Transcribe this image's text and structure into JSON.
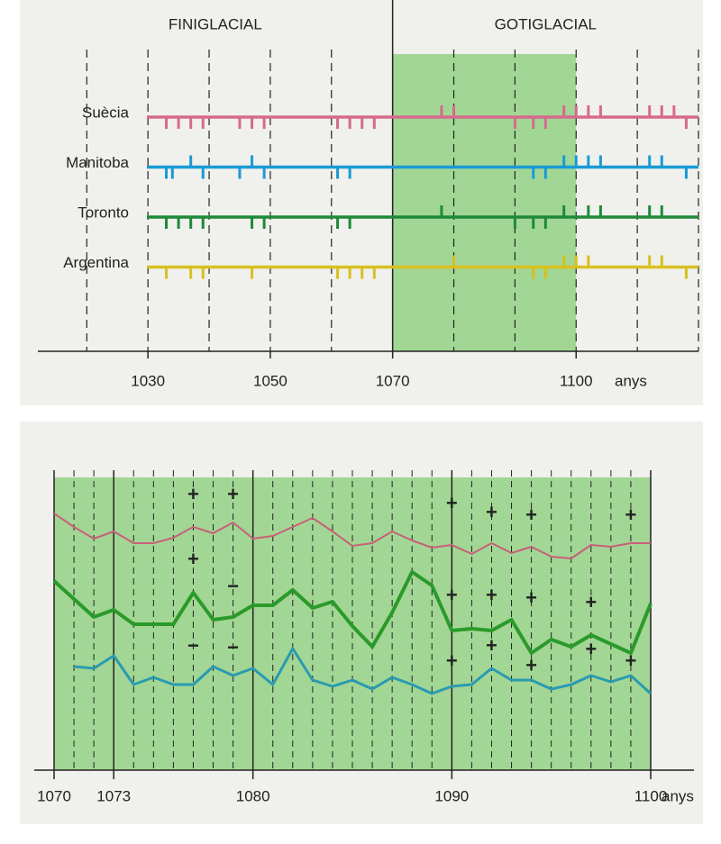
{
  "chart_data": [
    {
      "type": "event",
      "periods": [
        "FINIGLACIAL",
        "GOTIGLACIAL"
      ],
      "divider": 1070,
      "shade": [
        1070,
        1100
      ],
      "x_label": "anys",
      "xlim": [
        1012,
        1120
      ],
      "xticks": [
        1030,
        1050,
        1070,
        1100
      ],
      "grid_step": 10,
      "series": [
        {
          "name": "Suècia",
          "color": "#d66a8e",
          "x": [
            1033,
            1035,
            1037,
            1039,
            1045,
            1047,
            1049,
            1061,
            1063,
            1065,
            1067,
            1078,
            1080,
            1090,
            1093,
            1095,
            1098,
            1100,
            1102,
            1104,
            1112,
            1114,
            1116,
            1118
          ],
          "values": [
            -1,
            -1,
            -1,
            -1,
            -1,
            -1,
            -1,
            -1,
            -1,
            -1,
            -1,
            1,
            1,
            -1,
            -1,
            -1,
            1,
            1,
            1,
            1,
            1,
            1,
            1,
            -1
          ]
        },
        {
          "name": "Manitoba",
          "color": "#1a9ad6",
          "x": [
            1033,
            1034,
            1037,
            1039,
            1045,
            1047,
            1049,
            1061,
            1063,
            1093,
            1095,
            1098,
            1100,
            1102,
            1104,
            1112,
            1114,
            1118
          ],
          "values": [
            -1,
            -1,
            1,
            -1,
            -1,
            1,
            -1,
            -1,
            -1,
            -1,
            -1,
            1,
            1,
            1,
            1,
            1,
            1,
            -1
          ]
        },
        {
          "name": "Toronto",
          "color": "#1e8a3a",
          "x": [
            1033,
            1035,
            1037,
            1039,
            1047,
            1049,
            1061,
            1063,
            1078,
            1090,
            1093,
            1095,
            1098,
            1102,
            1104,
            1112,
            1114
          ],
          "values": [
            -1,
            -1,
            -1,
            -1,
            -1,
            -1,
            -1,
            -1,
            1,
            -1,
            -1,
            -1,
            1,
            1,
            1,
            1,
            1
          ]
        },
        {
          "name": "Argentina",
          "color": "#d8c020",
          "x": [
            1033,
            1037,
            1039,
            1047,
            1061,
            1063,
            1065,
            1067,
            1080,
            1093,
            1095,
            1098,
            1100,
            1102,
            1112,
            1114,
            1118
          ],
          "values": [
            -1,
            -1,
            -1,
            -1,
            -1,
            -1,
            -1,
            -1,
            1,
            -1,
            -1,
            1,
            1,
            1,
            1,
            1,
            -1
          ]
        }
      ]
    },
    {
      "type": "line",
      "x_label": "anys",
      "xlim": [
        1070,
        1100
      ],
      "xticks": [
        1070,
        1073,
        1080,
        1090,
        1100
      ],
      "minor_grid_step": 1,
      "ylim": [
        0,
        325
      ],
      "x": [
        1070,
        1071,
        1072,
        1073,
        1074,
        1075,
        1076,
        1077,
        1078,
        1079,
        1080,
        1081,
        1082,
        1083,
        1084,
        1085,
        1086,
        1087,
        1088,
        1089,
        1090,
        1091,
        1092,
        1093,
        1094,
        1095,
        1096,
        1097,
        1098,
        1099,
        1100
      ],
      "series": [
        {
          "color": "#c8607a",
          "width": 2,
          "values": [
            285,
            270,
            257,
            265,
            252,
            252,
            258,
            270,
            263,
            275,
            257,
            260,
            270,
            280,
            265,
            249,
            252,
            265,
            255,
            247,
            250,
            240,
            252,
            241,
            248,
            237,
            235,
            250,
            248,
            252,
            252
          ]
        },
        {
          "color": "#2a9a2a",
          "width": 4,
          "values": [
            210,
            190,
            170,
            178,
            162,
            162,
            162,
            197,
            167,
            170,
            183,
            183,
            200,
            180,
            187,
            160,
            137,
            175,
            220,
            205,
            155,
            157,
            155,
            167,
            130,
            145,
            137,
            150,
            140,
            130,
            185
          ]
        },
        {
          "color": "#2a9ab0",
          "width": 3,
          "values": [
            null,
            115,
            113,
            127,
            95,
            103,
            95,
            95,
            115,
            105,
            113,
            95,
            135,
            100,
            93,
            100,
            90,
            103,
            95,
            85,
            93,
            95,
            113,
            100,
            100,
            90,
            95,
            105,
            98,
            105,
            85
          ]
        }
      ],
      "annotations": [
        {
          "text": "+",
          "x": 1077,
          "y": 305
        },
        {
          "text": "+",
          "x": 1079,
          "y": 305
        },
        {
          "text": "+",
          "x": 1090,
          "y": 295
        },
        {
          "text": "+",
          "x": 1092,
          "y": 285
        },
        {
          "text": "+",
          "x": 1094,
          "y": 282
        },
        {
          "text": "+",
          "x": 1099,
          "y": 282
        },
        {
          "text": "+",
          "x": 1077,
          "y": 233
        },
        {
          "text": "−",
          "x": 1079,
          "y": 203
        },
        {
          "text": "+",
          "x": 1090,
          "y": 193
        },
        {
          "text": "+",
          "x": 1092,
          "y": 193
        },
        {
          "text": "+",
          "x": 1094,
          "y": 190
        },
        {
          "text": "+",
          "x": 1097,
          "y": 185
        },
        {
          "text": "−",
          "x": 1077,
          "y": 137
        },
        {
          "text": "−",
          "x": 1079,
          "y": 135
        },
        {
          "text": "+",
          "x": 1092,
          "y": 137
        },
        {
          "text": "+",
          "x": 1097,
          "y": 133
        },
        {
          "text": "+",
          "x": 1090,
          "y": 120
        },
        {
          "text": "+",
          "x": 1094,
          "y": 115
        },
        {
          "text": "+",
          "x": 1099,
          "y": 120
        }
      ]
    }
  ]
}
